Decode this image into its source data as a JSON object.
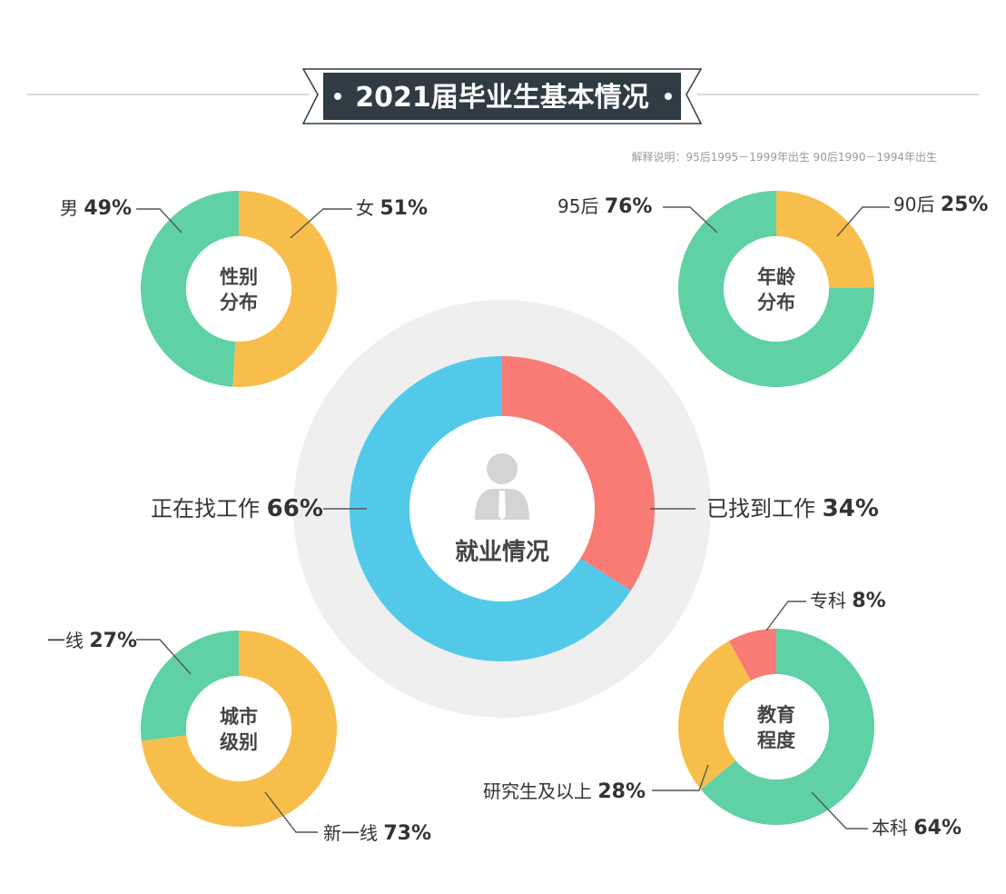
{
  "title": "2021届毕业生基本情况",
  "note": "解释说明：95后1995－1999年出生 90后1990－1994年出生",
  "colors": {
    "green": "#5fd1a4",
    "orange": "#f8be4b",
    "blue": "#53c9ea",
    "red": "#f87b75",
    "ring_bg": "#ececec",
    "banner": "#2f3c44"
  },
  "chart_data": [
    {
      "type": "pie",
      "id": "gender",
      "title": "性别分布",
      "center_lines": [
        "性别",
        "分布"
      ],
      "slices": [
        {
          "label": "女",
          "value": 51,
          "value_text": "51%",
          "color": "#f8be4b"
        },
        {
          "label": "男",
          "value": 49,
          "value_text": "49%",
          "color": "#5fd1a4"
        }
      ]
    },
    {
      "type": "pie",
      "id": "age",
      "title": "年龄分布",
      "center_lines": [
        "年龄",
        "分布"
      ],
      "slices": [
        {
          "label": "90后",
          "value": 25,
          "value_text": "25%",
          "color": "#f8be4b"
        },
        {
          "label": "95后",
          "value": 76,
          "value_text": "76%",
          "color": "#5fd1a4"
        }
      ]
    },
    {
      "type": "pie",
      "id": "employment",
      "title": "就业情况",
      "center_lines": [
        "就业情况"
      ],
      "slices": [
        {
          "label": "已找到工作",
          "value": 34,
          "value_text": "34%",
          "color": "#f87b75"
        },
        {
          "label": "正在找工作",
          "value": 66,
          "value_text": "66%",
          "color": "#53c9ea"
        }
      ]
    },
    {
      "type": "pie",
      "id": "city",
      "title": "城市级别",
      "center_lines": [
        "城市",
        "级别"
      ],
      "slices": [
        {
          "label": "新一线",
          "value": 73,
          "value_text": "73%",
          "color": "#f8be4b"
        },
        {
          "label": "一线",
          "value": 27,
          "value_text": "27%",
          "color": "#5fd1a4"
        }
      ]
    },
    {
      "type": "pie",
      "id": "education",
      "title": "教育程度",
      "center_lines": [
        "教育",
        "程度"
      ],
      "slices": [
        {
          "label": "本科",
          "value": 64,
          "value_text": "64%",
          "color": "#5fd1a4"
        },
        {
          "label": "研究生及以上",
          "value": 28,
          "value_text": "28%",
          "color": "#f8be4b"
        },
        {
          "label": "专科",
          "value": 8,
          "value_text": "8%",
          "color": "#f87b75"
        }
      ]
    }
  ]
}
